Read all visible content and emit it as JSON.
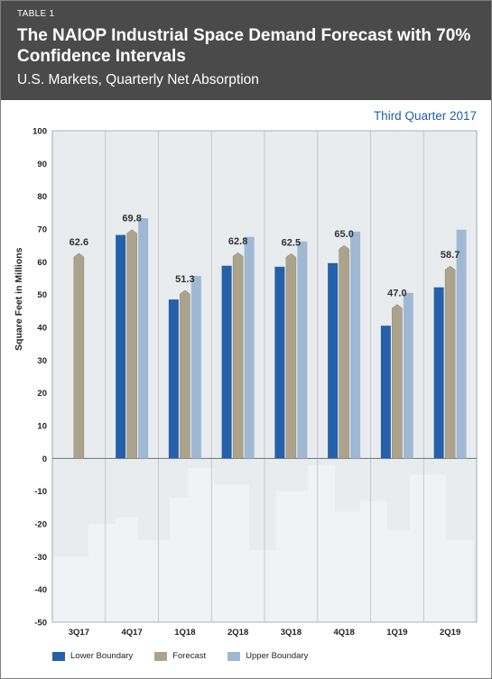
{
  "header": {
    "table_label": "TABLE 1",
    "title": "The NAIOP Industrial Space Demand Forecast with 70% Confidence Intervals",
    "subtitle": "U.S. Markets, Quarterly Net Absorption",
    "period": "Third Quarter 2017"
  },
  "colors": {
    "header_bg": "#4a4a4b",
    "lower": "#2561aa",
    "forecast": "#ada38d",
    "upper": "#9fb8d4",
    "plot_bg": "#e8ecef",
    "period_text": "#1f5fa8"
  },
  "chart_data": {
    "type": "bar",
    "title": "The NAIOP Industrial Space Demand Forecast with 70% Confidence Intervals",
    "subtitle": "U.S. Markets, Quarterly Net Absorption",
    "xlabel": "",
    "ylabel": "Square Feet in Millions",
    "ylim": [
      -50,
      100
    ],
    "yticks": [
      100,
      90,
      80,
      70,
      60,
      50,
      40,
      30,
      20,
      10,
      0,
      -10,
      -20,
      -30,
      -40,
      -50
    ],
    "grid": false,
    "legend_position": "bottom",
    "categories": [
      "3Q17",
      "4Q17",
      "1Q18",
      "2Q18",
      "3Q18",
      "4Q18",
      "1Q19",
      "2Q19"
    ],
    "series": [
      {
        "name": "Lower Boundary",
        "values": [
          null,
          68.2,
          48.5,
          58.8,
          58.5,
          59.6,
          40.5,
          52.2
        ]
      },
      {
        "name": "Forecast",
        "values": [
          62.6,
          69.8,
          51.3,
          62.8,
          62.5,
          65.0,
          47.0,
          58.7
        ]
      },
      {
        "name": "Upper Boundary",
        "values": [
          null,
          73.3,
          55.7,
          67.6,
          66.2,
          69.2,
          50.5,
          69.8
        ]
      }
    ],
    "data_labels": [
      "62.6",
      "69.8",
      "51.3",
      "62.8",
      "62.5",
      "65.0",
      "47.0",
      "58.7"
    ]
  },
  "legend": {
    "items": [
      "Lower Boundary",
      "Forecast",
      "Upper Boundary"
    ]
  }
}
